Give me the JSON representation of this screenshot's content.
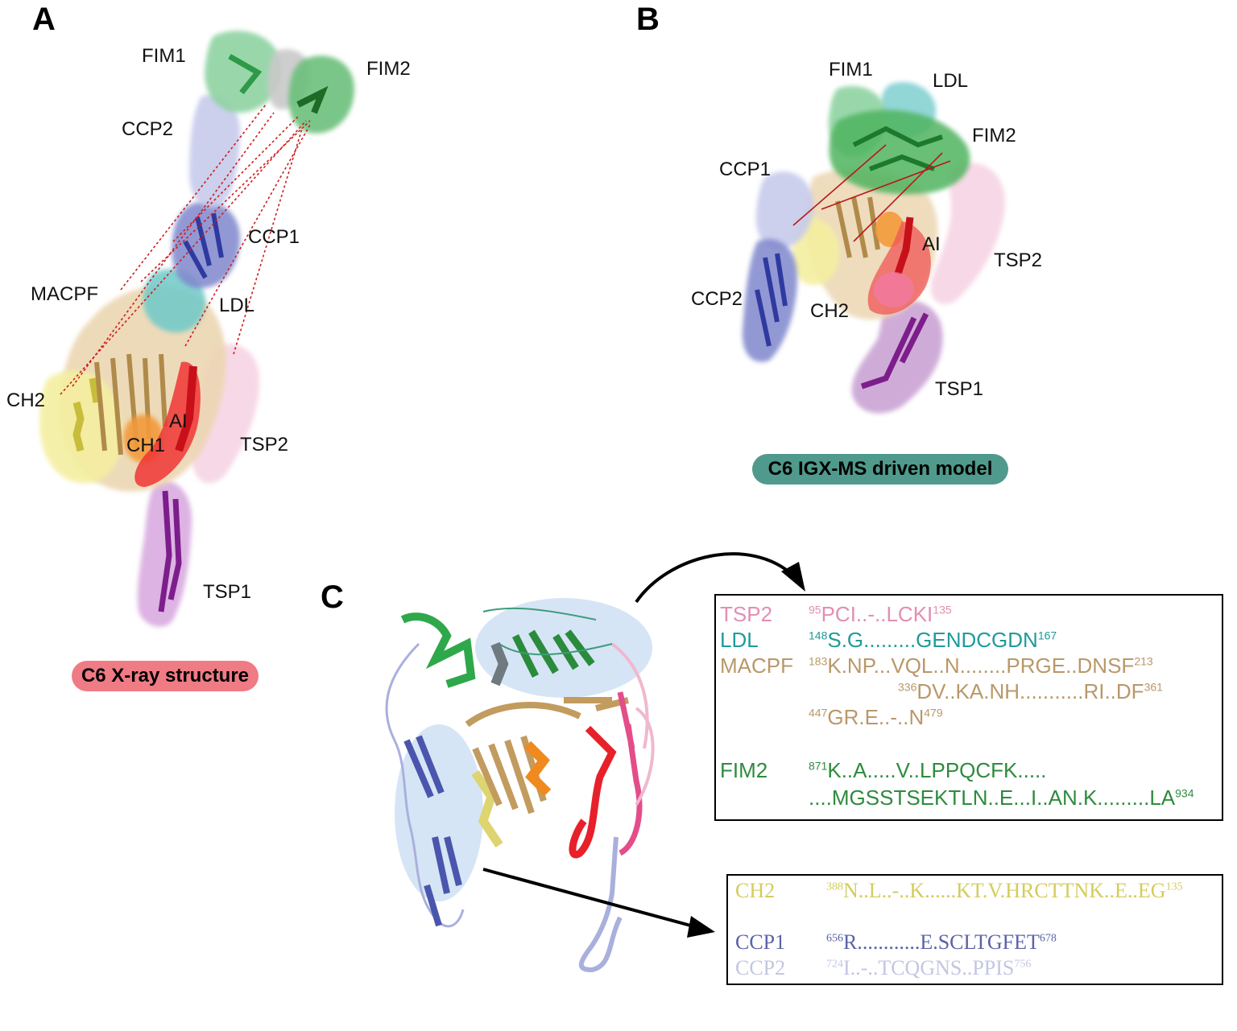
{
  "panels": {
    "a": {
      "letter": "A",
      "labels": {
        "fim1": "FIM1",
        "fim2": "FIM2",
        "ccp2": "CCP2",
        "ccp1": "CCP1",
        "macpf": "MACPF",
        "ldl": "LDL",
        "ch2": "CH2",
        "ch1": "CH1",
        "ai": "AI",
        "tsp2": "TSP2",
        "tsp1": "TSP1"
      },
      "caption": "C6 X-ray structure",
      "caption_color": "#ef7b84"
    },
    "b": {
      "letter": "B",
      "labels": {
        "fim1": "FIM1",
        "ldl": "LDL",
        "fim2": "FIM2",
        "ccp1": "CCP1",
        "ai": "AI",
        "tsp2": "TSP2",
        "ccp2": "CCP2",
        "ch2": "CH2",
        "tsp1": "TSP1"
      },
      "caption": "C6 IGX-MS driven model",
      "caption_color": "#4f9a8c"
    },
    "c": {
      "letter": "C",
      "upper_box": {
        "rows": [
          {
            "name": "TSP2",
            "color": "#e18fb4",
            "segments": [
              {
                "sup_start": "95",
                "seq": "PCI..-..LCKI",
                "sup_end": "135"
              }
            ]
          },
          {
            "name": "LDL",
            "color": "#1f9a9a",
            "segments": [
              {
                "sup_start": "148",
                "seq": "S.G.........GENDCGDN",
                "sup_end": "167"
              }
            ]
          },
          {
            "name": "MACPF",
            "color": "#b99869",
            "segments": [
              {
                "sup_start": "183",
                "seq": "K.NP...VQL..N........PRGE..DNSF",
                "sup_end": "213"
              },
              {
                "sup_start": "336",
                "seq": "DV..KA.NH...........RI..DF",
                "sup_end": "361"
              },
              {
                "sup_start": "447",
                "seq": "GR.E..-..N",
                "sup_end": "479"
              }
            ]
          },
          {
            "name": "FIM2",
            "color": "#2e8b3e",
            "segments": [
              {
                "sup_start": "871",
                "seq": "K..A.....V..LPPQCFK.....",
                "sup_end": ""
              },
              {
                "sup_start": "",
                "seq": "....MGSSTSEKTLN..E...I..AN.K.........LA",
                "sup_end": "934"
              }
            ]
          }
        ]
      },
      "lower_box": {
        "rows": [
          {
            "name": "CH2",
            "color": "#d4cc5c",
            "segments": [
              {
                "sup_start": "388",
                "seq": "N..L..-..K......KT.V.HRCTTNK..E..EG",
                "sup_end": "135"
              }
            ]
          },
          {
            "name": "CCP1",
            "color": "#5b63a8",
            "segments": [
              {
                "sup_start": "656",
                "seq": "R............E.SCLTGFET",
                "sup_end": "678"
              }
            ]
          },
          {
            "name": "CCP2",
            "color": "#c3c6e2",
            "segments": [
              {
                "sup_start": "724",
                "seq": "I..-..TCQGNS..PPIS",
                "sup_end": "756"
              }
            ]
          }
        ]
      }
    }
  },
  "domain_colors": {
    "FIM1": "#5cc07a",
    "FIM2": "#2f9a3a",
    "CCP2": "#b7bce3",
    "CCP1": "#4a56ad",
    "MACPF": "#e3c49a",
    "LDL": "#3fb0b3",
    "CH2": "#f0ea8a",
    "CH1": "#f08a1e",
    "AI": "#e8202a",
    "TSP2": "#f2c1d6",
    "TSP1": "#9a3aa5",
    "linker": "#9a9a9a"
  }
}
